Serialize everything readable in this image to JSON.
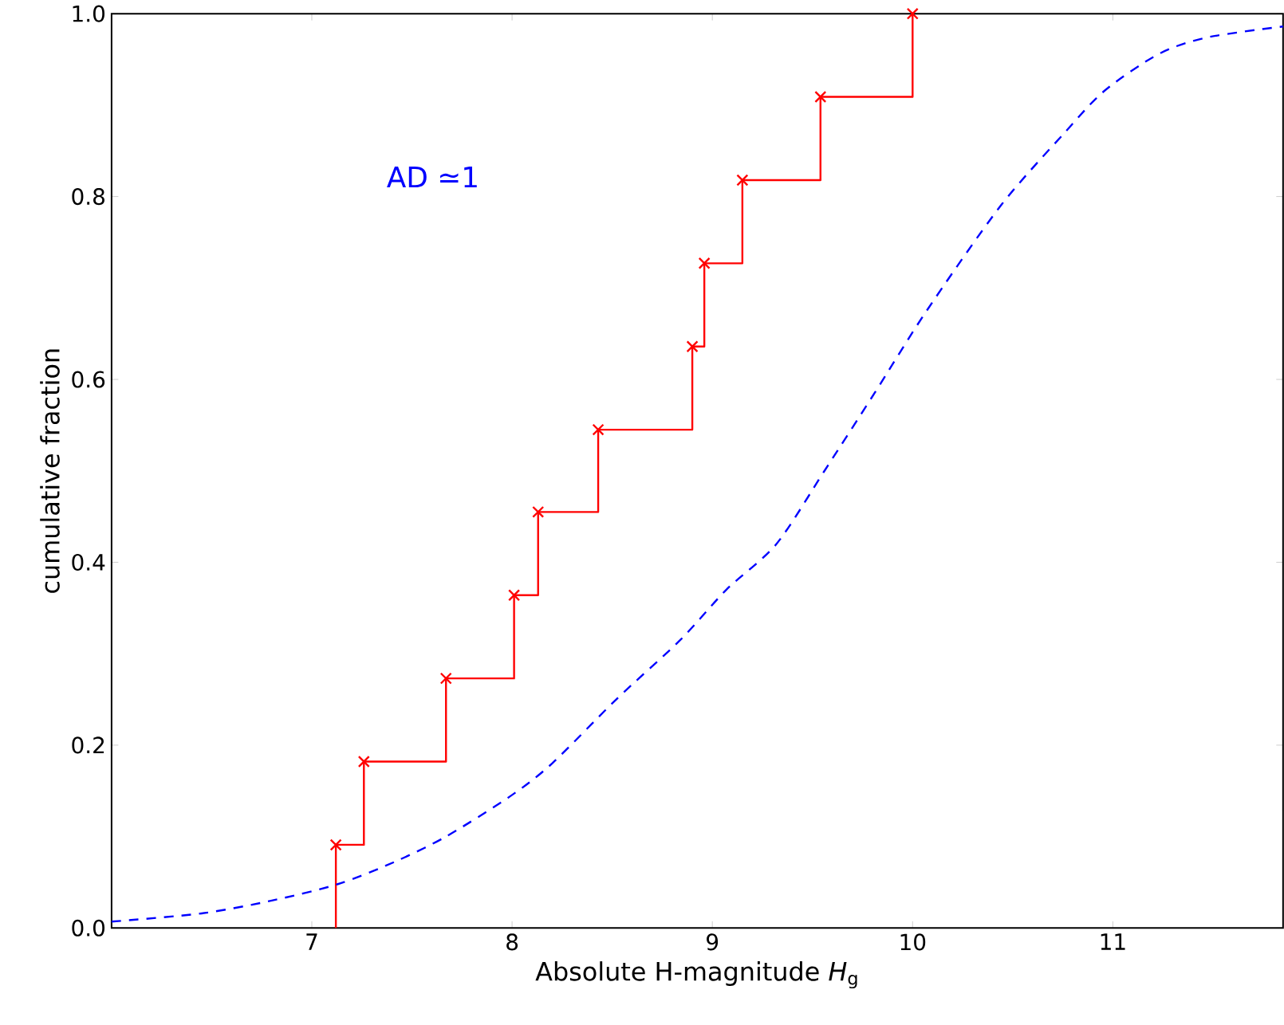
{
  "chart_data": {
    "type": "line",
    "xlabel": "Absolute H-magnitude *H*$_{g}$",
    "ylabel": "cumulative fraction",
    "annotations": [
      "AD ≃1"
    ],
    "xlim": [
      6.0,
      11.85
    ],
    "ylim": [
      0.0,
      1.0
    ],
    "xticks": [
      7,
      8,
      9,
      10,
      11
    ],
    "yticks": [
      {
        "value": 0,
        "label": "0.0"
      },
      {
        "value": 0.2,
        "label": "0.2"
      },
      {
        "value": 0.4,
        "label": "0.4"
      },
      {
        "value": 0.6,
        "label": "0.6"
      },
      {
        "value": 0.8,
        "label": "0.8"
      },
      {
        "value": 1.0,
        "label": "1.0"
      }
    ],
    "grid": false,
    "series": [
      {
        "type": "step",
        "color": "#ff0000",
        "marker": "cross",
        "line_style": "solid",
        "x": [
          7.12,
          7.12,
          7.26,
          7.67,
          8.01,
          8.13,
          8.43,
          8.9,
          8.96,
          9.15,
          9.54,
          10.0
        ],
        "values": [
          0.0,
          0.091,
          0.182,
          0.273,
          0.364,
          0.455,
          0.545,
          0.636,
          0.727,
          0.818,
          0.909,
          1.0
        ]
      },
      {
        "color": "#0000ff",
        "marker": "none",
        "line_style": "dashed",
        "x": [
          6.0,
          6.45,
          6.8,
          7.13,
          7.41,
          7.67,
          7.99,
          8.2,
          8.52,
          8.84,
          9.07,
          9.32,
          9.56,
          9.81,
          10.07,
          10.44,
          10.76,
          10.96,
          11.23,
          11.47,
          11.85
        ],
        "values": [
          0.007,
          0.016,
          0.03,
          0.048,
          0.072,
          0.1,
          0.144,
          0.18,
          0.25,
          0.315,
          0.37,
          0.42,
          0.5,
          0.585,
          0.675,
          0.79,
          0.87,
          0.916,
          0.956,
          0.974,
          0.986
        ]
      }
    ]
  }
}
